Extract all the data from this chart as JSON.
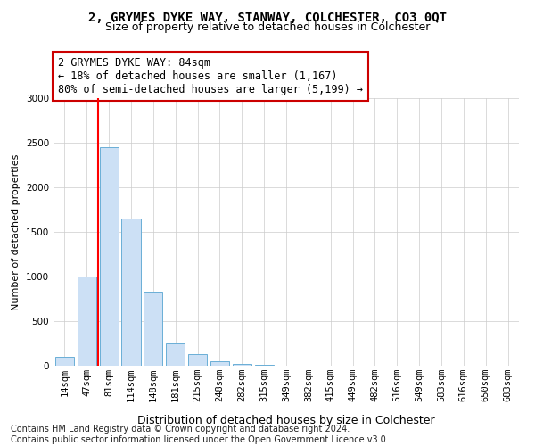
{
  "title1": "2, GRYMES DYKE WAY, STANWAY, COLCHESTER, CO3 0QT",
  "title2": "Size of property relative to detached houses in Colchester",
  "xlabel": "Distribution of detached houses by size in Colchester",
  "ylabel": "Number of detached properties",
  "categories": [
    "14sqm",
    "47sqm",
    "81sqm",
    "114sqm",
    "148sqm",
    "181sqm",
    "215sqm",
    "248sqm",
    "282sqm",
    "315sqm",
    "349sqm",
    "382sqm",
    "415sqm",
    "449sqm",
    "482sqm",
    "516sqm",
    "549sqm",
    "583sqm",
    "616sqm",
    "650sqm",
    "683sqm"
  ],
  "values": [
    100,
    1000,
    2450,
    1650,
    830,
    250,
    130,
    50,
    20,
    10,
    5,
    3,
    2,
    1,
    1,
    0,
    0,
    0,
    0,
    0,
    0
  ],
  "bar_color": "#cce0f5",
  "bar_edge_color": "#6aaed6",
  "red_line_x": 1.5,
  "highlight_color": "#ff0000",
  "annotation_text": "2 GRYMES DYKE WAY: 84sqm\n← 18% of detached houses are smaller (1,167)\n80% of semi-detached houses are larger (5,199) →",
  "annotation_box_color": "#ffffff",
  "annotation_box_edge_color": "#cc0000",
  "ylim": [
    0,
    3000
  ],
  "footnote": "Contains HM Land Registry data © Crown copyright and database right 2024.\nContains public sector information licensed under the Open Government Licence v3.0.",
  "title1_fontsize": 10,
  "title2_fontsize": 9,
  "xlabel_fontsize": 9,
  "ylabel_fontsize": 8,
  "tick_fontsize": 7.5,
  "annotation_fontsize": 8.5,
  "footnote_fontsize": 7
}
